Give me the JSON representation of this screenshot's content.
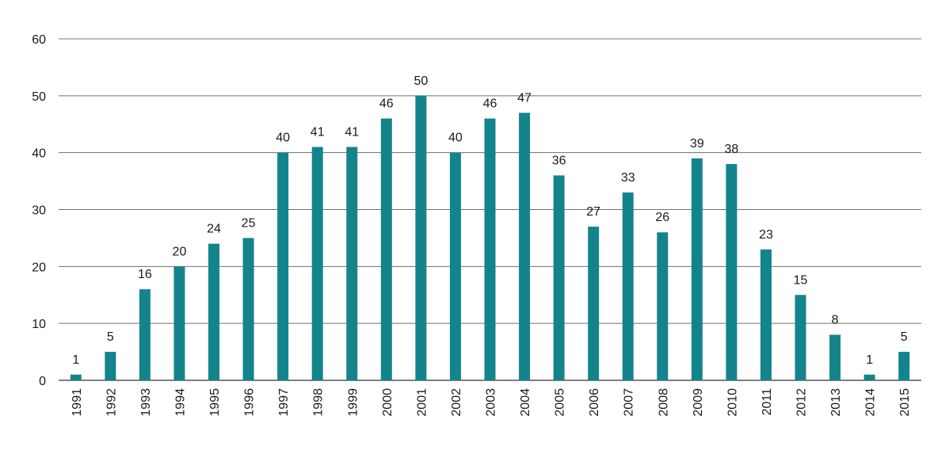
{
  "chart_data": {
    "type": "bar",
    "title": "",
    "xlabel": "",
    "ylabel": "",
    "categories": [
      "1991",
      "1992",
      "1993",
      "1994",
      "1995",
      "1996",
      "1997",
      "1998",
      "1999",
      "2000",
      "2001",
      "2002",
      "2003",
      "2004",
      "2005",
      "2006",
      "2007",
      "2008",
      "2009",
      "2010",
      "2011",
      "2012",
      "2013",
      "2014",
      "2015"
    ],
    "values": [
      1,
      5,
      16,
      20,
      24,
      25,
      40,
      41,
      41,
      46,
      50,
      40,
      46,
      47,
      36,
      27,
      33,
      26,
      39,
      38,
      23,
      15,
      8,
      1,
      5
    ],
    "ylim": [
      0,
      60
    ],
    "yticks": [
      0,
      10,
      20,
      30,
      40,
      50,
      60
    ],
    "bar_color": "#14848c",
    "grid": true,
    "legend": "none",
    "data_labels": true,
    "x_tick_rotation": "vertical"
  }
}
